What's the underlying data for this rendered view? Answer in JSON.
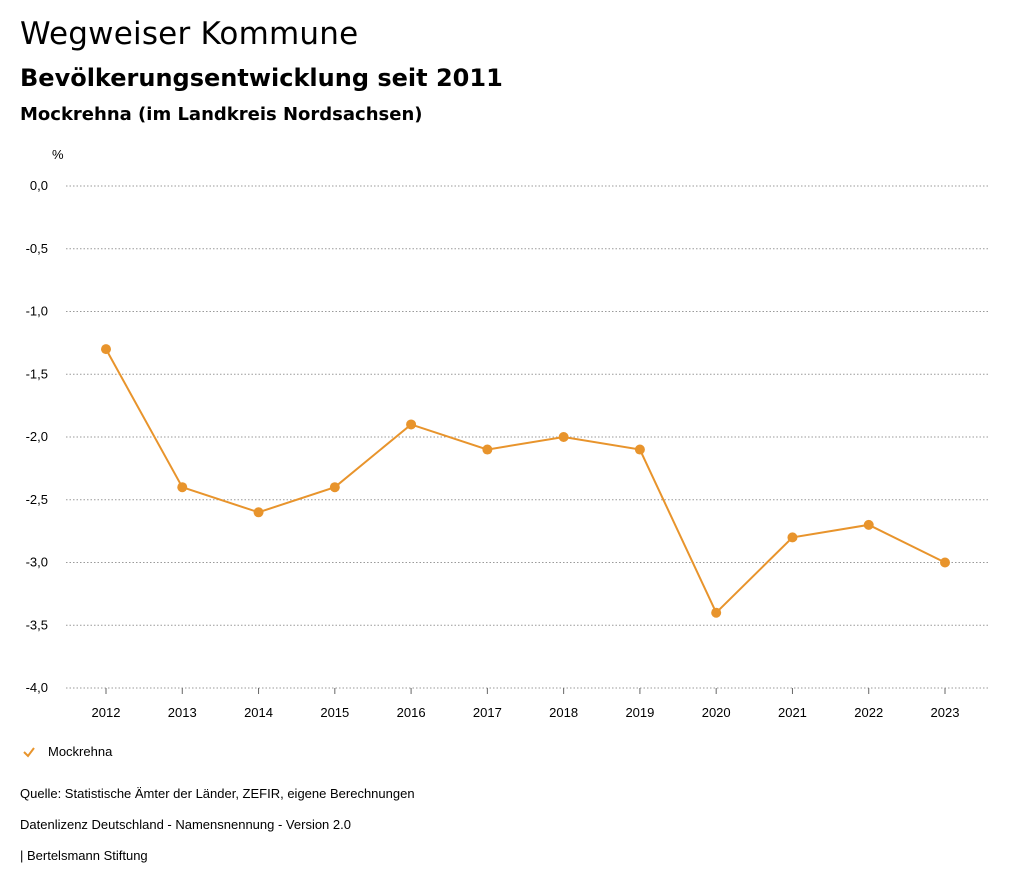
{
  "header": {
    "title": "Wegweiser Kommune",
    "subtitle": "Bevölkerungsentwicklung seit 2011",
    "region": "Mockrehna (im Landkreis Nordsachsen)"
  },
  "chart_data": {
    "type": "line",
    "unit_label": "%",
    "categories": [
      "2012",
      "2013",
      "2014",
      "2015",
      "2016",
      "2017",
      "2018",
      "2019",
      "2020",
      "2021",
      "2022",
      "2023"
    ],
    "series": [
      {
        "name": "Mockrehna",
        "color": "#E8942C",
        "values": [
          -1.3,
          -2.4,
          -2.6,
          -2.4,
          -1.9,
          -2.1,
          -2.0,
          -2.1,
          -3.4,
          -2.8,
          -2.7,
          -3.0
        ]
      }
    ],
    "ylim": [
      -4.0,
      0.0
    ],
    "yticks": [
      0.0,
      -0.5,
      -1.0,
      -1.5,
      -2.0,
      -2.5,
      -3.0,
      -3.5,
      -4.0
    ],
    "ytick_labels": [
      "0,0",
      "-0,5",
      "-1,0",
      "-1,5",
      "-2,0",
      "-2,5",
      "-3,0",
      "-3,5",
      "-4,0"
    ],
    "grid": true,
    "legend_position": "bottom-left"
  },
  "legend": {
    "label": "Mockrehna",
    "icon": "check-mark-icon"
  },
  "footer": {
    "source": "Quelle: Statistische Ämter der Länder, ZEFIR, eigene Berechnungen",
    "license": "Datenlizenz Deutschland - Namensnennung - Version 2.0",
    "publisher": "| Bertelsmann Stiftung"
  }
}
